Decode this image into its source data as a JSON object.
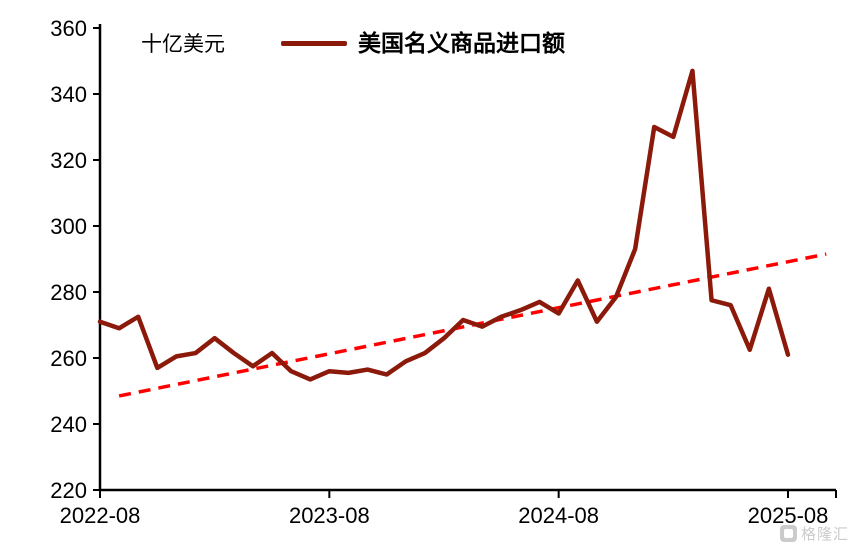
{
  "chart_data": {
    "type": "line",
    "title": "",
    "unit_label": "十亿美元",
    "legend": [
      {
        "name": "美国名义商品进口额",
        "color": "#8B1A0B",
        "style": "solid"
      }
    ],
    "x_tick_labels": [
      "2022-08",
      "2023-08",
      "2024-08",
      "2025-08"
    ],
    "x_tick_month_index": [
      0,
      12,
      24,
      36
    ],
    "ylim": [
      220,
      360
    ],
    "y_ticks": [
      220,
      240,
      260,
      280,
      300,
      320,
      340,
      360
    ],
    "grid": "off",
    "legend_position": "top",
    "months": [
      "2022-08",
      "2022-09",
      "2022-10",
      "2022-11",
      "2022-12",
      "2023-01",
      "2023-02",
      "2023-03",
      "2023-04",
      "2023-05",
      "2023-06",
      "2023-07",
      "2023-08",
      "2023-09",
      "2023-10",
      "2023-11",
      "2023-12",
      "2024-01",
      "2024-02",
      "2024-03",
      "2024-04",
      "2024-05",
      "2024-06",
      "2024-07",
      "2024-08",
      "2024-09",
      "2024-10",
      "2024-11",
      "2024-12",
      "2025-01",
      "2025-02",
      "2025-03",
      "2025-04",
      "2025-05",
      "2025-06",
      "2025-07",
      "2025-08"
    ],
    "series": [
      {
        "name": "美国名义商品进口额",
        "color": "#8B1A0B",
        "values": [
          271,
          269,
          272.5,
          257,
          260.5,
          261.5,
          266,
          261.5,
          257.5,
          261.5,
          256,
          253.5,
          256,
          255.5,
          256.5,
          255,
          259,
          261.5,
          266,
          271.5,
          269.5,
          272.5,
          274.5,
          277,
          273.5,
          283.5,
          271,
          278.5,
          293,
          330,
          327,
          347,
          277.5,
          276,
          262.5,
          281,
          261
        ]
      }
    ],
    "trend_line": {
      "color": "#FF0000",
      "style": "dashed",
      "start_month_index": 1,
      "start_value": 248.5,
      "end_month_index": 38,
      "end_value": 291.5
    }
  },
  "watermark": {
    "text": "格隆汇"
  },
  "colors": {
    "axis": "#000000",
    "background": "#FFFFFF",
    "series": "#8B1A0B",
    "trend": "#FF0000",
    "text": "#000000"
  }
}
